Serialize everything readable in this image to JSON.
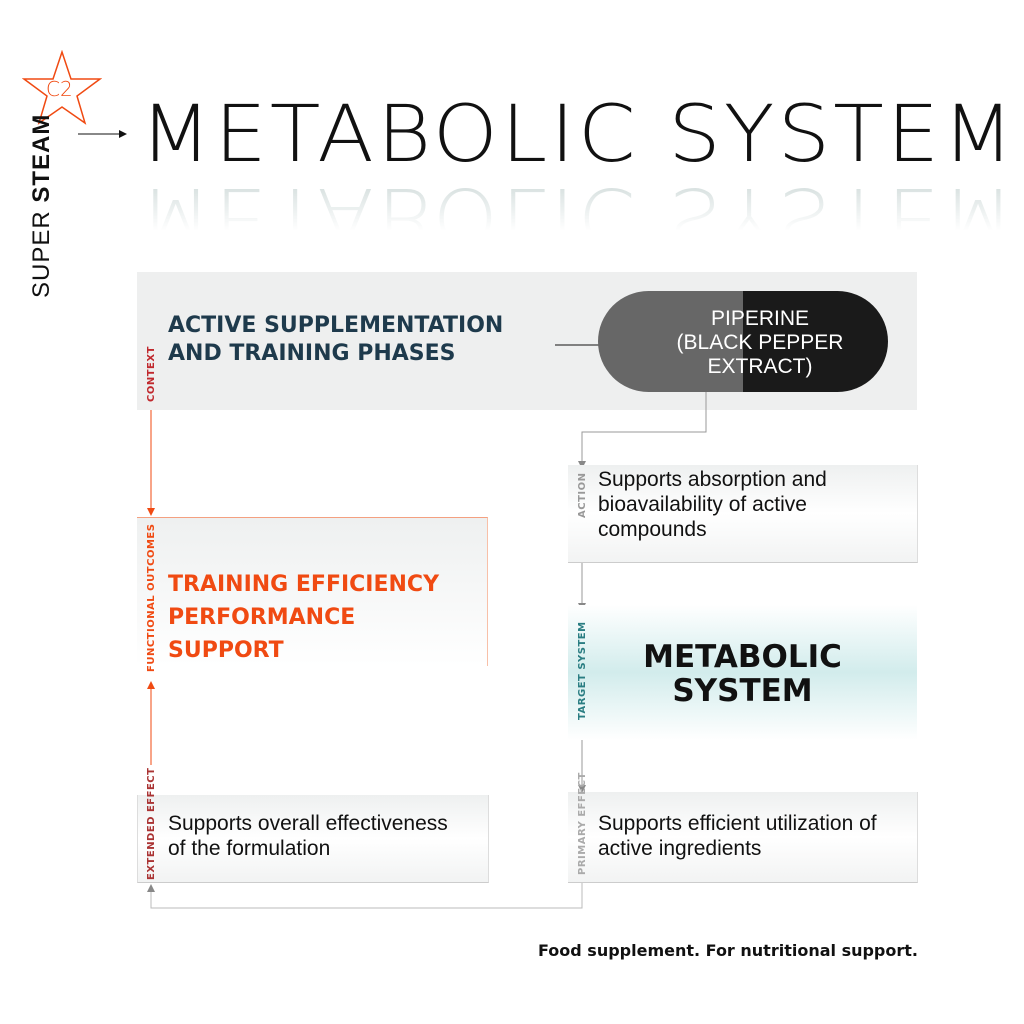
{
  "brand": {
    "badge": "C2",
    "super": "SUPER",
    "steam": "STEAM"
  },
  "title": "METABOLIC SYSTEM",
  "context": {
    "label": "CONTEXT",
    "text_line1": "ACTIVE SUPPLEMENTATION",
    "text_line2": "AND TRAINING PHASES"
  },
  "ingredient": {
    "line1": "PIPERINE",
    "line2": "(BLACK PEPPER",
    "line3": "EXTRACT)"
  },
  "action": {
    "label": "ACTION",
    "line1": "Supports absorption and",
    "line2": "bioavailability of active",
    "line3": "compounds"
  },
  "target": {
    "label": "TARGET SYSTEM",
    "line1": "METABOLIC",
    "line2": "SYSTEM"
  },
  "primary": {
    "label": "PRIMARY EFFECT",
    "line1": "Supports efficient utilization of",
    "line2": "active ingredients"
  },
  "functional": {
    "label": "FUNCTIONAL OUTCOMES",
    "line1": "TRAINING EFFICIENCY",
    "line2": "PERFORMANCE",
    "line3": "SUPPORT"
  },
  "extended": {
    "label": "EXTENDED EFFECT",
    "line1": "Supports overall effectiveness",
    "line2": "of the formulation"
  },
  "footer": "Food supplement. For nutritional support.",
  "colors": {
    "accent": "#f04a12",
    "navy": "#1e3a4c",
    "teal": "#2a7d82",
    "context_red": "#c0282d"
  }
}
